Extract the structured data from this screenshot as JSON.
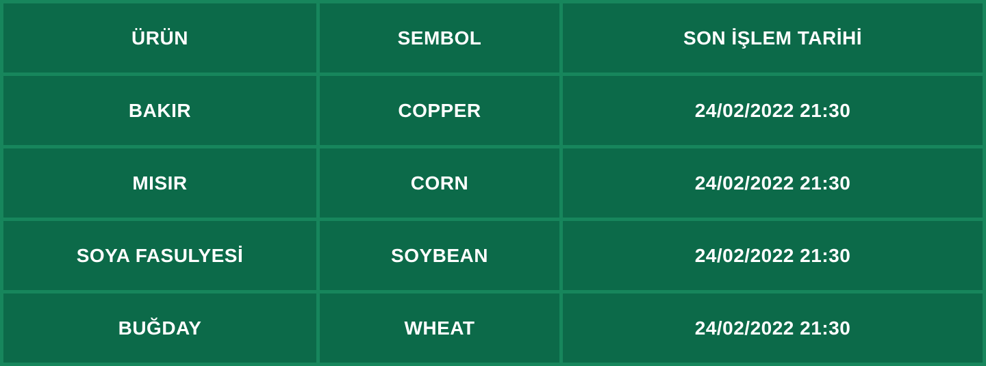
{
  "theme": {
    "grid_bg": "#17865C",
    "cell_bg": "#0C6A49",
    "text": "#FFFFFF"
  },
  "table": {
    "columns": [
      {
        "key": "urun",
        "label": "ÜRÜN"
      },
      {
        "key": "sembol",
        "label": "SEMBOL"
      },
      {
        "key": "son_islem_tarihi",
        "label": "SON İŞLEM TARİHİ"
      }
    ],
    "rows": [
      {
        "urun": "BAKIR",
        "sembol": "COPPER",
        "son_islem_tarihi": "24/02/2022 21:30"
      },
      {
        "urun": "MISIR",
        "sembol": "CORN",
        "son_islem_tarihi": "24/02/2022 21:30"
      },
      {
        "urun": "SOYA FASULYESİ",
        "sembol": "SOYBEAN",
        "son_islem_tarihi": "24/02/2022 21:30"
      },
      {
        "urun": "BUĞDAY",
        "sembol": "WHEAT",
        "son_islem_tarihi": "24/02/2022 21:30"
      }
    ]
  }
}
